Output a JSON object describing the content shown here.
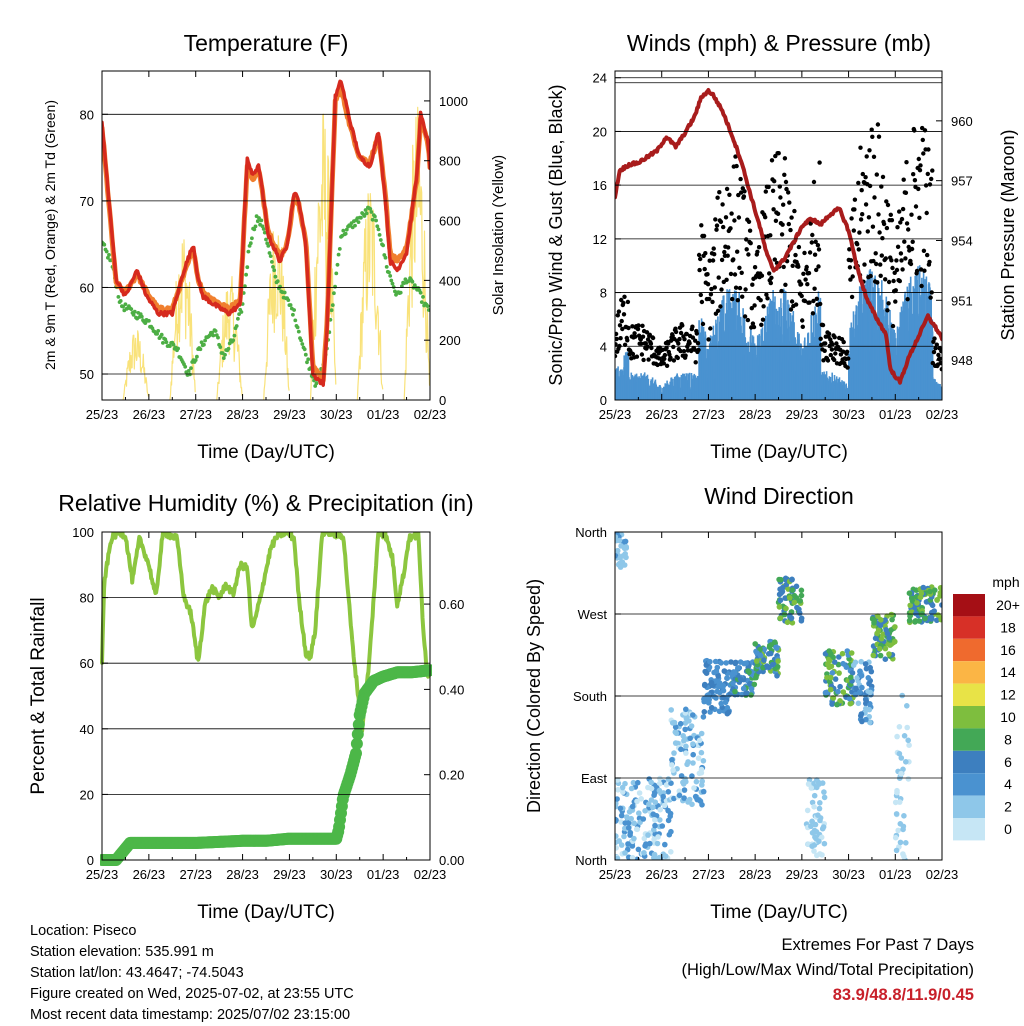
{
  "panels": {
    "temperature": {
      "title": "Temperature (F)",
      "ylabel_left": "2m & 9m T (Red, Orange) & 2m Td (Green)",
      "ylabel_right": "Solar Insolation (Yellow)",
      "xlabel": "Time (Day/UTC)"
    },
    "winds": {
      "title": "Winds (mph) & Pressure (mb)",
      "ylabel_left": "Sonic/Prop Wind & Gust (Blue, Black)",
      "ylabel_right": "Station Pressure (Maroon)",
      "xlabel": "Time (Day/UTC)"
    },
    "humidity": {
      "title": "Relative Humidity (%) & Precipitation (in)",
      "ylabel_left": "Percent & Total Rainfall",
      "xlabel": "Time (Day/UTC)"
    },
    "direction": {
      "title": "Wind Direction",
      "ylabel_left": "Direction (Colored By Speed)",
      "xlabel": "Time (Day/UTC)",
      "legend_title": "mph"
    }
  },
  "info": {
    "location": "Location: Piseco",
    "elevation": "Station elevation: 535.991 m",
    "latlon": "Station lat/lon: 43.4647; -74.5043",
    "created": "Figure created on Wed, 2025-07-02, at 23:55 UTC",
    "recent": "Most recent data timestamp: 2025/07/02 23:15:00"
  },
  "extremes": {
    "heading": "Extremes For Past 7 Days",
    "subheading": "(High/Low/Max Wind/Total Precipitation)",
    "values": "83.9/48.8/11.9/0.45"
  },
  "colors": {
    "temp_2m": "#d62a1e",
    "temp_9m": "#f07f2e",
    "dewpoint": "#4cae44",
    "insolation": "#f9e27a",
    "wind": "#4a92d0",
    "gust": "#000000",
    "pressure": "#a81c1c",
    "rh": "#8cc63f",
    "precip": "#4cb748"
  },
  "chart_data": [
    {
      "type": "line",
      "title": "Temperature (F)",
      "xlabel": "Time (Day/UTC)",
      "ylabel": "2m & 9m T (Red, Orange) & 2m Td (Green)",
      "y2label": "Solar Insolation (Yellow)",
      "x_ticks": [
        "25/23",
        "26/23",
        "27/23",
        "28/23",
        "29/23",
        "30/23",
        "01/23",
        "02/23"
      ],
      "xlim": [
        0,
        7
      ],
      "ylim": [
        47,
        85
      ],
      "y_ticks": [
        50,
        60,
        70,
        80
      ],
      "y2lim": [
        0,
        1100
      ],
      "y2_ticks": [
        0,
        200,
        400,
        600,
        800,
        1000
      ],
      "grid": true,
      "series": [
        {
          "name": "2m T",
          "color": "#d62a1e",
          "x": [
            0,
            0.15,
            0.3,
            0.5,
            0.75,
            0.95,
            1.2,
            1.5,
            1.75,
            1.95,
            2.05,
            2.15,
            2.4,
            2.7,
            2.95,
            3.1,
            3.2,
            3.35,
            3.55,
            3.8,
            3.95,
            4.1,
            4.2,
            4.35,
            4.5,
            4.72,
            4.8,
            4.98,
            5.1,
            5.3,
            5.5,
            5.72,
            5.9,
            6.05,
            6.15,
            6.3,
            6.5,
            6.72,
            6.8,
            6.95,
            7.0
          ],
          "y": [
            79,
            70,
            61,
            59,
            62,
            59,
            57,
            57,
            62,
            65,
            61,
            59,
            58,
            57,
            58,
            75,
            73,
            74,
            66,
            63,
            65,
            71,
            70,
            65,
            50,
            48.8,
            55,
            82,
            83.9,
            79,
            75,
            74,
            78,
            70,
            63,
            62,
            64,
            73,
            80,
            77,
            74
          ]
        },
        {
          "name": "9m T",
          "color": "#f07f2e",
          "x": [
            0,
            0.15,
            0.3,
            0.5,
            0.75,
            0.95,
            1.2,
            1.5,
            1.75,
            1.95,
            2.05,
            2.15,
            2.4,
            2.7,
            2.95,
            3.1,
            3.2,
            3.35,
            3.55,
            3.8,
            3.95,
            4.1,
            4.2,
            4.35,
            4.5,
            4.72,
            4.8,
            4.98,
            5.1,
            5.3,
            5.5,
            5.72,
            5.9,
            6.05,
            6.15,
            6.3,
            6.5,
            6.72,
            6.8,
            6.95,
            7.0
          ],
          "y": [
            78.5,
            69.5,
            60.5,
            59.5,
            61.5,
            59.5,
            57.5,
            57.5,
            61.5,
            64.5,
            61,
            59.5,
            58.5,
            57.5,
            58.5,
            74,
            72.5,
            73.5,
            66.5,
            63.5,
            65,
            70.5,
            69.5,
            65.5,
            51,
            49.3,
            55.5,
            81.5,
            83,
            78.5,
            75,
            74.5,
            77.5,
            70.5,
            64,
            63,
            64.5,
            72.5,
            79.5,
            77,
            74
          ]
        },
        {
          "name": "2m Td",
          "color": "#4cae44",
          "x": [
            0,
            0.2,
            0.4,
            0.7,
            1.0,
            1.3,
            1.6,
            1.85,
            2.0,
            2.2,
            2.4,
            2.6,
            2.8,
            3.0,
            3.15,
            3.3,
            3.45,
            3.7,
            3.9,
            4.1,
            4.3,
            4.55,
            4.75,
            4.9,
            5.1,
            5.3,
            5.5,
            5.7,
            5.9,
            6.1,
            6.3,
            6.5,
            6.7,
            6.9,
            7.0
          ],
          "y": [
            65,
            63,
            58,
            57,
            56,
            54,
            53,
            50,
            52,
            54,
            55,
            52,
            54,
            58,
            65,
            68,
            67,
            61,
            59,
            57,
            53,
            49,
            51,
            57,
            66,
            67,
            68,
            69,
            67,
            62,
            59,
            61,
            60,
            58,
            57
          ]
        },
        {
          "name": "Solar Insolation",
          "color": "#f9e27a",
          "axis": "y2",
          "days": [
            0,
            1,
            2,
            3,
            4,
            5,
            6
          ],
          "peaks": [
            250,
            600,
            430,
            660,
            1000,
            760,
            1000
          ]
        }
      ]
    },
    {
      "type": "scatter",
      "title": "Winds (mph) & Pressure (mb)",
      "xlabel": "Time (Day/UTC)",
      "ylabel": "Sonic/Prop Wind & Gust (Blue, Black)",
      "y2label": "Station Pressure (Maroon)",
      "x_ticks": [
        "25/23",
        "26/23",
        "27/23",
        "28/23",
        "29/23",
        "30/23",
        "01/23",
        "02/23"
      ],
      "xlim": [
        0,
        7
      ],
      "ylim": [
        0,
        24.5
      ],
      "y_ticks": [
        0,
        4,
        8,
        12,
        16,
        20,
        24
      ],
      "y2lim": [
        946.0,
        962.5
      ],
      "y2_ticks": [
        948,
        951,
        954,
        957,
        960
      ],
      "grid": true,
      "series": [
        {
          "name": "Pressure",
          "color": "#a81c1c",
          "x": [
            0,
            0.1,
            0.3,
            0.5,
            0.7,
            0.9,
            1.1,
            1.3,
            1.5,
            1.7,
            1.85,
            2.0,
            2.1,
            2.3,
            2.5,
            2.7,
            2.9,
            3.1,
            3.25,
            3.4,
            3.6,
            3.8,
            4.0,
            4.2,
            4.4,
            4.6,
            4.8,
            5.0,
            5.2,
            5.4,
            5.6,
            5.8,
            5.9,
            6.1,
            6.3,
            6.5,
            6.7,
            6.9,
            7.0
          ],
          "y": [
            956.2,
            957.5,
            957.8,
            957.9,
            958.2,
            958.5,
            959.2,
            958.7,
            959.4,
            960.2,
            961.2,
            961.5,
            961.3,
            960.5,
            959.3,
            958.0,
            956.3,
            954.7,
            953.3,
            952.5,
            953.0,
            953.8,
            954.7,
            955.1,
            954.8,
            955.3,
            955.6,
            954.5,
            952.5,
            951.0,
            950.1,
            949.3,
            947.5,
            946.9,
            948.2,
            949.2,
            950.2,
            949.5,
            949.1
          ]
        },
        {
          "name": "Wind (Blue)",
          "color": "#4a92d0"
        },
        {
          "name": "Gust (Black)",
          "color": "#000000"
        }
      ]
    },
    {
      "type": "line",
      "title": "Relative Humidity (%) & Precipitation (in)",
      "xlabel": "Time (Day/UTC)",
      "ylabel": "Percent & Total Rainfall",
      "x_ticks": [
        "25/23",
        "26/23",
        "27/23",
        "28/23",
        "29/23",
        "30/23",
        "01/23",
        "02/23"
      ],
      "xlim": [
        0,
        7
      ],
      "ylim": [
        0,
        100
      ],
      "y_ticks": [
        0,
        20,
        40,
        60,
        80,
        100
      ],
      "y2lim": [
        0,
        0.769
      ],
      "y2_ticks": [
        0.0,
        0.2,
        0.4,
        0.6
      ],
      "grid": true,
      "series": [
        {
          "name": "RH",
          "color": "#8cc63f",
          "x": [
            0,
            0.05,
            0.2,
            0.35,
            0.5,
            0.65,
            0.8,
            1.0,
            1.15,
            1.3,
            1.45,
            1.6,
            1.75,
            1.9,
            2.05,
            2.2,
            2.35,
            2.5,
            2.65,
            2.8,
            2.95,
            3.1,
            3.2,
            3.3,
            3.45,
            3.6,
            3.75,
            3.95,
            4.1,
            4.2,
            4.35,
            4.45,
            4.55,
            4.7,
            4.85,
            5.0,
            5.15,
            5.35,
            5.55,
            5.7,
            5.9,
            6.05,
            6.2,
            6.3,
            6.45,
            6.55,
            6.75,
            6.85,
            6.95,
            7.0
          ],
          "y": [
            60,
            85,
            98,
            100,
            99,
            85,
            98,
            90,
            80,
            100,
            99,
            98,
            80,
            75,
            60,
            78,
            83,
            80,
            84,
            81,
            90,
            89,
            70,
            75,
            85,
            95,
            99,
            100,
            98,
            80,
            63,
            62,
            70,
            100,
            100,
            99,
            99,
            65,
            40,
            60,
            100,
            99,
            92,
            78,
            88,
            98,
            99,
            72,
            55,
            58
          ]
        },
        {
          "name": "Total Rainfall",
          "color": "#4cb748",
          "axis": "y2",
          "x": [
            0,
            0.3,
            0.45,
            0.6,
            1.0,
            2.0,
            3.0,
            3.5,
            4.0,
            4.5,
            5.0,
            5.05,
            5.15,
            5.3,
            5.42,
            5.5,
            5.6,
            5.8,
            6.0,
            6.3,
            6.6,
            7.0
          ],
          "y": [
            0.0,
            0.0,
            0.02,
            0.04,
            0.04,
            0.04,
            0.045,
            0.045,
            0.05,
            0.05,
            0.05,
            0.07,
            0.15,
            0.2,
            0.25,
            0.34,
            0.39,
            0.42,
            0.43,
            0.44,
            0.44,
            0.445
          ]
        }
      ]
    },
    {
      "type": "scatter",
      "title": "Wind Direction",
      "xlabel": "Time (Day/UTC)",
      "ylabel": "Direction (Colored By Speed)",
      "x_ticks": [
        "25/23",
        "26/23",
        "27/23",
        "28/23",
        "29/23",
        "30/23",
        "01/23",
        "02/23"
      ],
      "xlim": [
        0,
        7
      ],
      "ylim": [
        0,
        360
      ],
      "y_ticks": [
        "North",
        "East",
        "South",
        "West",
        "North"
      ],
      "y_tick_values": [
        0,
        90,
        180,
        270,
        360
      ],
      "grid": true,
      "colorbar": {
        "title": "mph",
        "labels": [
          "0",
          "2",
          "4",
          "6",
          "8",
          "10",
          "12",
          "14",
          "16",
          "18",
          "20+"
        ],
        "colors": [
          "#c6e6f5",
          "#8ec7e9",
          "#4a92d0",
          "#3d7fbf",
          "#43a856",
          "#7ebe3e",
          "#e8e347",
          "#fbb545",
          "#ef6a2e",
          "#d73027",
          "#a50f15"
        ]
      },
      "clusters": [
        {
          "x0": 0.0,
          "x1": 1.2,
          "dir": [
            0,
            90
          ],
          "speed": [
            0,
            5
          ]
        },
        {
          "x0": 0.0,
          "x1": 0.25,
          "dir": [
            320,
            360
          ],
          "speed": [
            1,
            4
          ]
        },
        {
          "x0": 1.2,
          "x1": 1.9,
          "dir": [
            60,
            170
          ],
          "speed": [
            0,
            4
          ]
        },
        {
          "x0": 1.9,
          "x1": 2.5,
          "dir": [
            160,
            220
          ],
          "speed": [
            3,
            6
          ]
        },
        {
          "x0": 2.5,
          "x1": 3.0,
          "dir": [
            180,
            220
          ],
          "speed": [
            3,
            8
          ]
        },
        {
          "x0": 3.0,
          "x1": 3.5,
          "dir": [
            200,
            240
          ],
          "speed": [
            4,
            10
          ]
        },
        {
          "x0": 3.5,
          "x1": 4.0,
          "dir": [
            260,
            310
          ],
          "speed": [
            5,
            10
          ]
        },
        {
          "x0": 4.1,
          "x1": 4.5,
          "dir": [
            0,
            90
          ],
          "speed": [
            0,
            3
          ]
        },
        {
          "x0": 4.5,
          "x1": 5.1,
          "dir": [
            170,
            230
          ],
          "speed": [
            4,
            11
          ]
        },
        {
          "x0": 5.1,
          "x1": 5.5,
          "dir": [
            150,
            220
          ],
          "speed": [
            2,
            7
          ]
        },
        {
          "x0": 5.5,
          "x1": 6.0,
          "dir": [
            220,
            270
          ],
          "speed": [
            5,
            11
          ]
        },
        {
          "x0": 6.0,
          "x1": 6.3,
          "dir": [
            0,
            200
          ],
          "speed": [
            0,
            3
          ]
        },
        {
          "x0": 6.3,
          "x1": 7.0,
          "dir": [
            260,
            300
          ],
          "speed": [
            5,
            11
          ]
        }
      ]
    }
  ]
}
